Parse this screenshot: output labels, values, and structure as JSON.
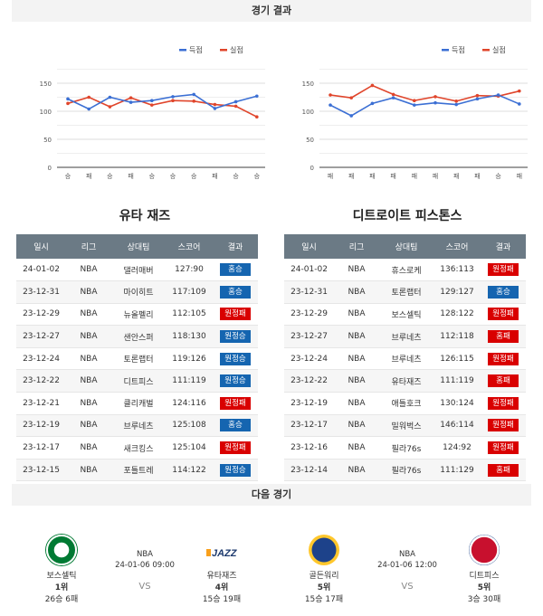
{
  "sections": {
    "results_title": "경기 결과",
    "next_title": "다음 경기"
  },
  "legend": {
    "scored": "득점",
    "conceded": "실점",
    "scored_color": "#3b6fd4",
    "conceded_color": "#e0452b"
  },
  "colors": {
    "header_bg": "#6b7a85",
    "win_badge": "#1565b0",
    "loss_badge": "#d90000",
    "section_bg": "#f3f3f3"
  },
  "chart_data": [
    {
      "type": "line",
      "title": "유타 재즈",
      "categories": [
        "승",
        "패",
        "승",
        "패",
        "승",
        "승",
        "승",
        "패",
        "승",
        "승"
      ],
      "series": [
        {
          "name": "득점",
          "color": "#3b6fd4",
          "values": [
            122,
            104,
            125,
            116,
            119,
            126,
            130,
            105,
            117,
            127
          ]
        },
        {
          "name": "실점",
          "color": "#e0452b",
          "values": [
            114,
            125,
            108,
            124,
            111,
            119,
            118,
            112,
            109,
            90
          ]
        }
      ],
      "yticks": [
        0,
        50,
        100,
        150
      ],
      "ylim": [
        0,
        175
      ],
      "grid": true,
      "legend_position": "top-right"
    },
    {
      "type": "line",
      "title": "디트로이트 피스톤스",
      "categories": [
        "패",
        "패",
        "패",
        "패",
        "패",
        "패",
        "패",
        "패",
        "승",
        "패"
      ],
      "series": [
        {
          "name": "득점",
          "color": "#3b6fd4",
          "values": [
            111,
            92,
            114,
            124,
            111,
            115,
            112,
            122,
            129,
            113
          ]
        },
        {
          "name": "실점",
          "color": "#e0452b",
          "values": [
            129,
            124,
            146,
            130,
            119,
            126,
            118,
            128,
            127,
            136
          ]
        }
      ],
      "yticks": [
        0,
        50,
        100,
        150
      ],
      "ylim": [
        0,
        175
      ],
      "grid": true,
      "legend_position": "top-right"
    }
  ],
  "table_headers": [
    "일시",
    "리그",
    "상대팀",
    "스코어",
    "결과"
  ],
  "teams": [
    {
      "name": "유타 재즈",
      "games": [
        {
          "date": "24-01-02",
          "league": "NBA",
          "opponent": "댈러매버",
          "score": "127:90",
          "result": "홈승",
          "win": true
        },
        {
          "date": "23-12-31",
          "league": "NBA",
          "opponent": "마이히트",
          "score": "117:109",
          "result": "홈승",
          "win": true
        },
        {
          "date": "23-12-29",
          "league": "NBA",
          "opponent": "뉴올펠리",
          "score": "112:105",
          "result": "원정패",
          "win": false
        },
        {
          "date": "23-12-27",
          "league": "NBA",
          "opponent": "샌안스퍼",
          "score": "118:130",
          "result": "원정승",
          "win": true
        },
        {
          "date": "23-12-24",
          "league": "NBA",
          "opponent": "토론랩터",
          "score": "119:126",
          "result": "원정승",
          "win": true
        },
        {
          "date": "23-12-22",
          "league": "NBA",
          "opponent": "디트피스",
          "score": "111:119",
          "result": "원정승",
          "win": true
        },
        {
          "date": "23-12-21",
          "league": "NBA",
          "opponent": "클리캐벌",
          "score": "124:116",
          "result": "원정패",
          "win": false
        },
        {
          "date": "23-12-19",
          "league": "NBA",
          "opponent": "브루네츠",
          "score": "125:108",
          "result": "홈승",
          "win": true
        },
        {
          "date": "23-12-17",
          "league": "NBA",
          "opponent": "새크킹스",
          "score": "125:104",
          "result": "원정패",
          "win": false
        },
        {
          "date": "23-12-15",
          "league": "NBA",
          "opponent": "포틀트레",
          "score": "114:122",
          "result": "원정승",
          "win": true
        }
      ]
    },
    {
      "name": "디트로이트 피스톤스",
      "games": [
        {
          "date": "24-01-02",
          "league": "NBA",
          "opponent": "휴스로케",
          "score": "136:113",
          "result": "원정패",
          "win": false
        },
        {
          "date": "23-12-31",
          "league": "NBA",
          "opponent": "토론랩터",
          "score": "129:127",
          "result": "홈승",
          "win": true
        },
        {
          "date": "23-12-29",
          "league": "NBA",
          "opponent": "보스셀틱",
          "score": "128:122",
          "result": "원정패",
          "win": false
        },
        {
          "date": "23-12-27",
          "league": "NBA",
          "opponent": "브루네츠",
          "score": "112:118",
          "result": "홈패",
          "win": false
        },
        {
          "date": "23-12-24",
          "league": "NBA",
          "opponent": "브루네츠",
          "score": "126:115",
          "result": "원정패",
          "win": false
        },
        {
          "date": "23-12-22",
          "league": "NBA",
          "opponent": "유타재즈",
          "score": "111:119",
          "result": "홈패",
          "win": false
        },
        {
          "date": "23-12-19",
          "league": "NBA",
          "opponent": "애틀호크",
          "score": "130:124",
          "result": "원정패",
          "win": false
        },
        {
          "date": "23-12-17",
          "league": "NBA",
          "opponent": "밀워벅스",
          "score": "146:114",
          "result": "원정패",
          "win": false
        },
        {
          "date": "23-12-16",
          "league": "NBA",
          "opponent": "필라76s",
          "score": "124:92",
          "result": "원정패",
          "win": false
        },
        {
          "date": "23-12-14",
          "league": "NBA",
          "opponent": "필라76s",
          "score": "111:129",
          "result": "홈패",
          "win": false
        }
      ]
    }
  ],
  "next_games": [
    {
      "league": "NBA",
      "datetime": "24-01-06 09:00",
      "vs": "VS",
      "home": {
        "name": "보스셀틱",
        "rank": "1위",
        "record": "26승 6패",
        "logo": "celtics-logo",
        "color": "#007a33"
      },
      "away": {
        "name": "유타재즈",
        "rank": "4위",
        "record": "15승 19패",
        "logo": "jazz-logo",
        "color": "#1d3a6e"
      }
    },
    {
      "league": "NBA",
      "datetime": "24-01-06 12:00",
      "vs": "VS",
      "home": {
        "name": "골든워리",
        "rank": "5위",
        "record": "15승 17패",
        "logo": "warriors-logo",
        "color": "#1d428a"
      },
      "away": {
        "name": "디트피스",
        "rank": "5위",
        "record": "3승 30패",
        "logo": "pistons-logo",
        "color": "#c8102e"
      }
    }
  ]
}
